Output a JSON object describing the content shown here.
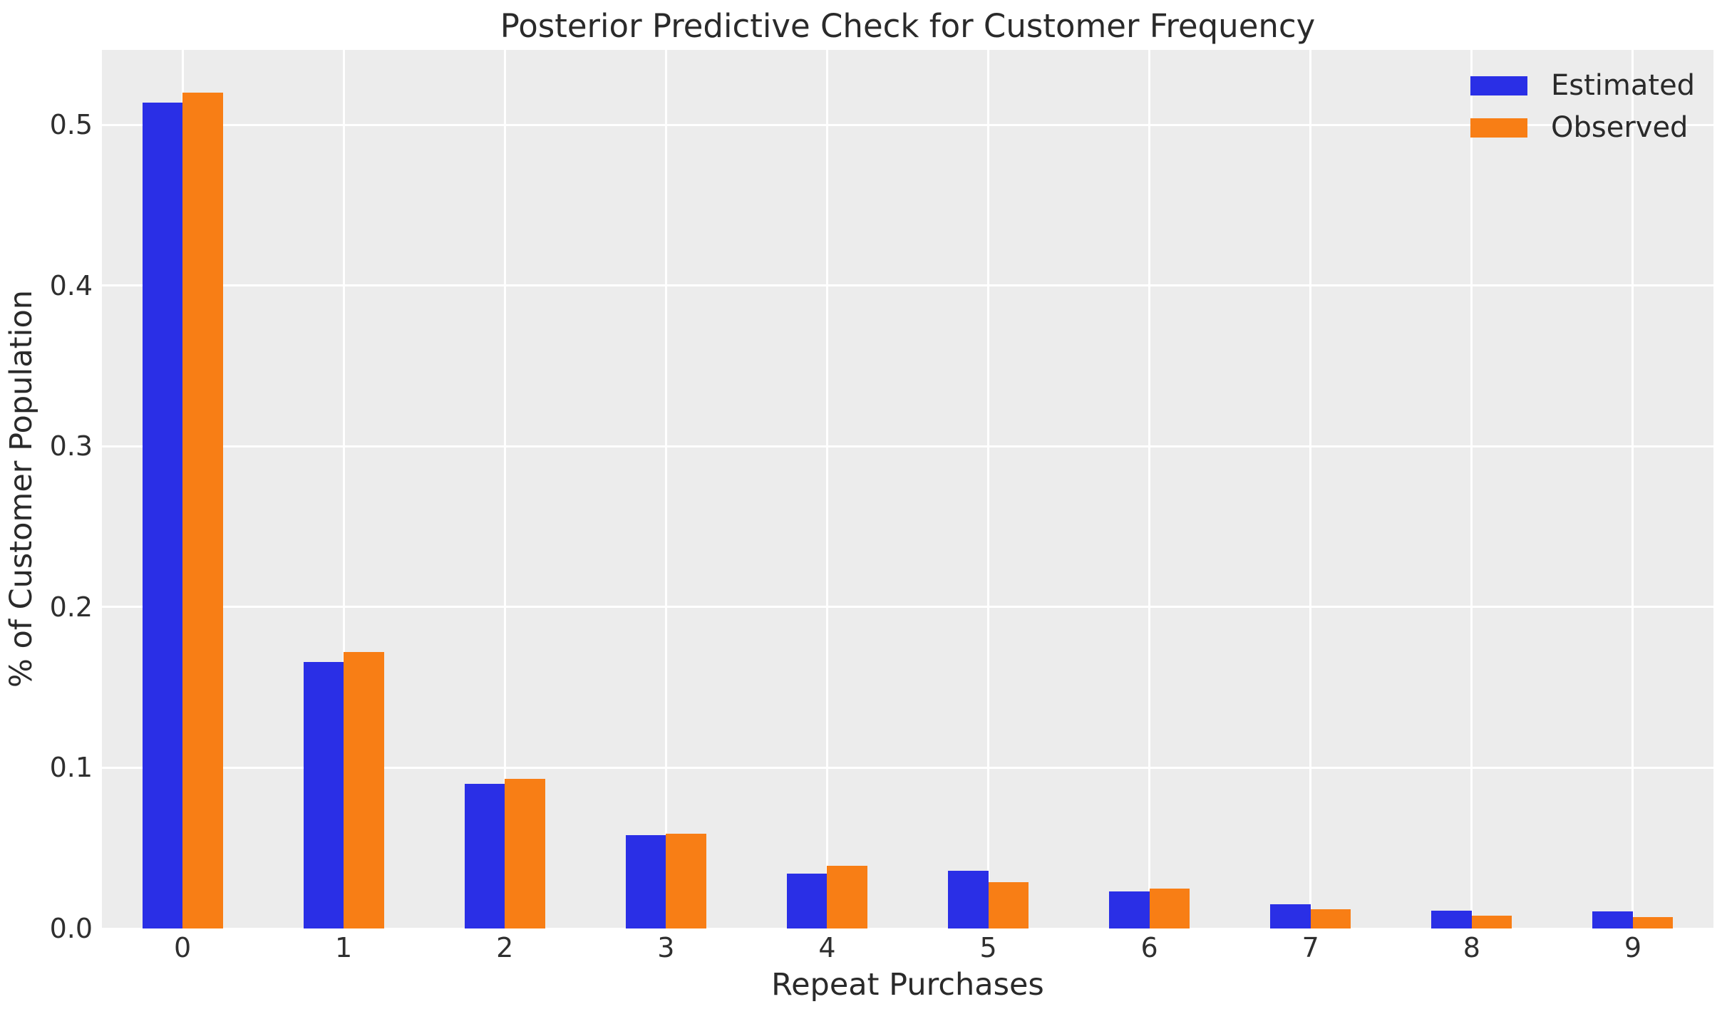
{
  "chart_data": {
    "type": "bar",
    "title": "Posterior Predictive Check for Customer Frequency",
    "xlabel": "Repeat Purchases",
    "ylabel": "% of Customer Population",
    "categories": [
      "0",
      "1",
      "2",
      "3",
      "4",
      "5",
      "6",
      "7",
      "8",
      "9"
    ],
    "series": [
      {
        "name": "Estimated",
        "color": "#2a2fe6",
        "values": [
          0.514,
          0.166,
          0.09,
          0.058,
          0.034,
          0.036,
          0.023,
          0.015,
          0.011,
          0.0105
        ]
      },
      {
        "name": "Observed",
        "color": "#f87e15",
        "values": [
          0.52,
          0.172,
          0.093,
          0.059,
          0.039,
          0.029,
          0.025,
          0.012,
          0.008,
          0.007
        ]
      }
    ],
    "yticks": [
      0.0,
      0.1,
      0.2,
      0.3,
      0.4,
      0.5
    ],
    "ytick_labels": [
      "0.0",
      "0.1",
      "0.2",
      "0.3",
      "0.4",
      "0.5"
    ],
    "ylim": [
      0,
      0.5466
    ],
    "xlim": [
      -0.5,
      9.5
    ],
    "bar_width": 0.25,
    "grid": true,
    "legend_position": "upper right",
    "colors": {
      "figure_bg": "#ffffff",
      "plot_bg": "#ececec",
      "grid": "#ffffff",
      "text": "#2f2f2f"
    }
  }
}
